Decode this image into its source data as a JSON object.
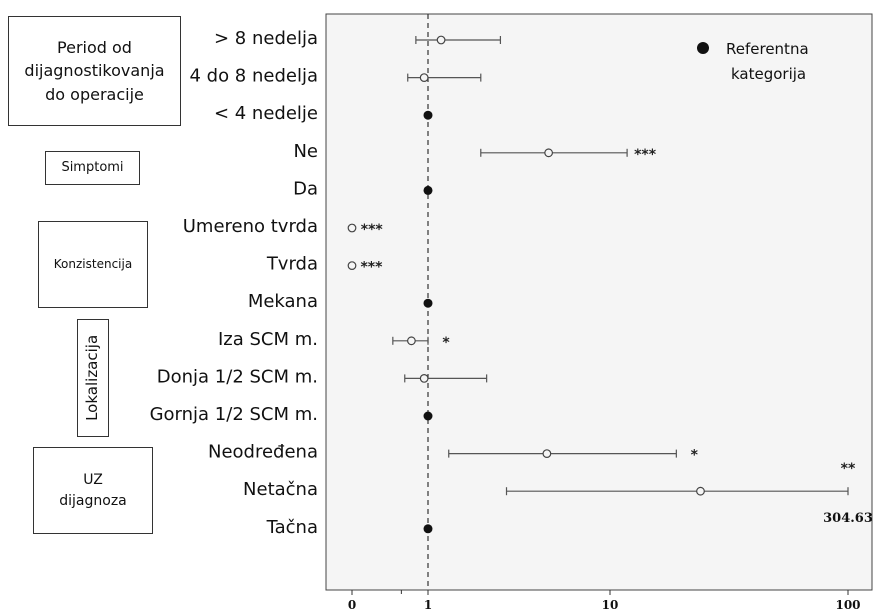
{
  "chart_data": {
    "type": "forest",
    "x_scale": "log",
    "x_ticks": [
      "0",
      "1",
      "10",
      "100"
    ],
    "reference_value": 1,
    "legend": {
      "label_line1": "Referentna",
      "label_line2": "kategorija",
      "placement": "top-right"
    },
    "groups": [
      {
        "label_lines": [
          "Period od",
          "dijagnostikovanja",
          "do operacije"
        ],
        "orientation": "horizontal"
      },
      {
        "label_lines": [
          "Simptomi"
        ],
        "orientation": "horizontal"
      },
      {
        "label_lines": [
          "Konzistencija"
        ],
        "orientation": "horizontal"
      },
      {
        "label_lines": [
          "Lokalizacija"
        ],
        "orientation": "vertical"
      },
      {
        "label_lines": [
          "UZ",
          "dijagnoza"
        ],
        "orientation": "horizontal"
      }
    ],
    "rows": [
      {
        "label": "> 8 nedelja",
        "reference": false,
        "or": 1.18,
        "lower": 0.62,
        "upper": 2.5,
        "sig": ""
      },
      {
        "label": "4 do 8 nedelja",
        "reference": false,
        "or": 0.86,
        "lower": 0.45,
        "upper": 1.95,
        "sig": ""
      },
      {
        "label": "< 4 nedelje",
        "reference": true,
        "or": 1,
        "sig": ""
      },
      {
        "label": "Ne",
        "reference": false,
        "or": 4.6,
        "lower": 1.95,
        "upper": 11.8,
        "sig": "***"
      },
      {
        "label": "Da",
        "reference": true,
        "or": 1,
        "sig": ""
      },
      {
        "label": "Umereno tvrda",
        "reference": false,
        "or": 0.02,
        "lower": 0.015,
        "upper": 0.03,
        "sig": "***"
      },
      {
        "label": "Tvrda",
        "reference": false,
        "or": 0.02,
        "lower": 0.015,
        "upper": 0.028,
        "sig": "***"
      },
      {
        "label": "Mekana",
        "reference": true,
        "or": 1,
        "sig": ""
      },
      {
        "label": "Iza SCM m.",
        "reference": false,
        "or": 0.52,
        "lower": 0.25,
        "upper": 1.0,
        "sig": "*"
      },
      {
        "label": "Donja 1/2 SCM m.",
        "reference": false,
        "or": 0.86,
        "lower": 0.4,
        "upper": 2.1,
        "sig": ""
      },
      {
        "label": "Gornja 1/2 SCM m.",
        "reference": true,
        "or": 1,
        "sig": ""
      },
      {
        "label": "Neodređena",
        "reference": false,
        "or": 4.5,
        "lower": 1.3,
        "upper": 19,
        "sig": "*"
      },
      {
        "label": "Netačna",
        "reference": false,
        "or": 24,
        "lower": 2.7,
        "upper": 100,
        "sig": "**",
        "upper_note": "304.63"
      },
      {
        "label": "Tačna",
        "reference": true,
        "or": 1,
        "sig": ""
      }
    ]
  }
}
